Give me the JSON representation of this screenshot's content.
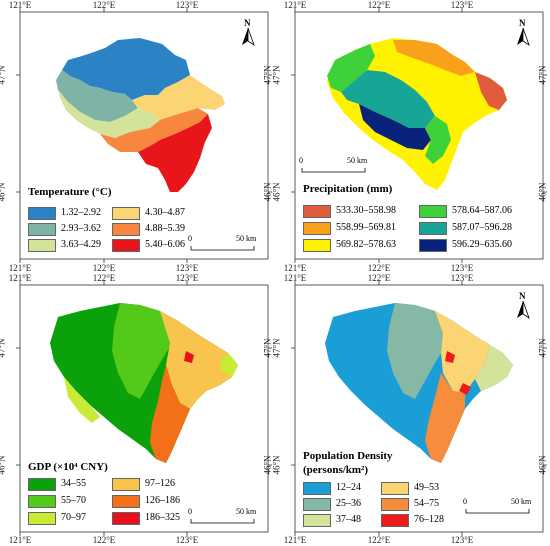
{
  "panels": [
    {
      "id": "temperature",
      "legend_title": "Temperature (°C)",
      "classes": [
        {
          "label": "1.32–2.92",
          "color": "#2b83c6"
        },
        {
          "label": "2.93–3.62",
          "color": "#7fb3a6"
        },
        {
          "label": "3.63–4.29",
          "color": "#d4e39a"
        },
        {
          "label": "4.30–4.87",
          "color": "#fbd474"
        },
        {
          "label": "4.88–5.39",
          "color": "#f7863f"
        },
        {
          "label": "5.40–6.06",
          "color": "#e8151a"
        }
      ],
      "scale": {
        "zero": "0",
        "end": "50 km"
      }
    },
    {
      "id": "precipitation",
      "legend_title": "Precipitation (mm)",
      "classes": [
        {
          "label": "533.30–558.98",
          "color": "#e05c3d"
        },
        {
          "label": "558.99–569.81",
          "color": "#f9a11b"
        },
        {
          "label": "569.82–578.63",
          "color": "#fff200"
        },
        {
          "label": "578.64–587.06",
          "color": "#3fd13a"
        },
        {
          "label": "587.07–596.28",
          "color": "#17a596"
        },
        {
          "label": "596.29–635.60",
          "color": "#0a237a"
        }
      ],
      "scale": {
        "zero": "0",
        "end": "50 km"
      }
    },
    {
      "id": "gdp",
      "legend_title": "GDP (×10⁴ CNY)",
      "classes": [
        {
          "label": "34–55",
          "color": "#0aa10a"
        },
        {
          "label": "55–70",
          "color": "#53c91a"
        },
        {
          "label": "70–97",
          "color": "#c8ec35"
        },
        {
          "label": "97–126",
          "color": "#f9c44d"
        },
        {
          "label": "126–186",
          "color": "#f36f19"
        },
        {
          "label": "186–325",
          "color": "#e8101a"
        }
      ],
      "scale": {
        "zero": "0",
        "end": "50 km"
      }
    },
    {
      "id": "population",
      "legend_title": "Population Density (persons/km²)",
      "legend_title_line1": "Population Density",
      "legend_title_line2": "(persons/km²)",
      "classes": [
        {
          "label": "12–24",
          "color": "#1b9ed6"
        },
        {
          "label": "25–36",
          "color": "#86b9a5"
        },
        {
          "label": "37–48",
          "color": "#d3e39a"
        },
        {
          "label": "49–53",
          "color": "#fbd574"
        },
        {
          "label": "54–75",
          "color": "#f58d3c"
        },
        {
          "label": "76–128",
          "color": "#ef1a1a"
        }
      ],
      "scale": {
        "zero": "0",
        "end": "50 km"
      }
    }
  ],
  "axes": {
    "x_ticks": [
      "121°E",
      "122°E",
      "123°E"
    ],
    "y_ticks": [
      "47°N",
      "46°N"
    ]
  },
  "north_label": "N"
}
